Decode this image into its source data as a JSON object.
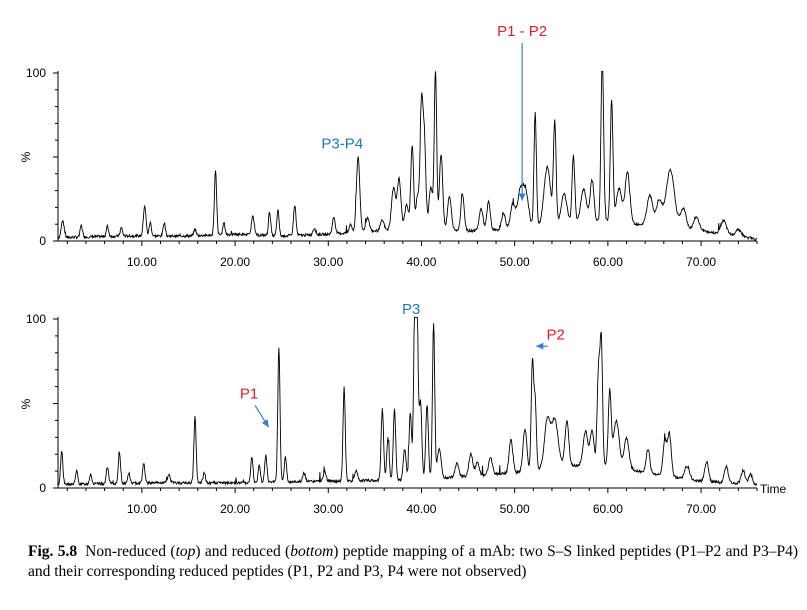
{
  "figure": {
    "caption_label": "Fig. 5.8",
    "caption_parts": [
      "Non-reduced (",
      "top",
      ") and reduced (",
      "bottom",
      ") peptide mapping of a mAb: two S–S linked peptides (P1–P2 and P3–P4) and their corresponding reduced peptides (P1, P2 and P3, P4 were not observed)"
    ]
  },
  "colors": {
    "trace": "#000000",
    "red_label": "#e31e24",
    "blue_label": "#1f78c1",
    "arrow": "#3a7fc4"
  },
  "chart_data": [
    {
      "type": "line",
      "panel": "top",
      "title": "",
      "xlabel": "",
      "ylabel": "%",
      "xlim": [
        1,
        76
      ],
      "ylim": [
        0,
        100
      ],
      "x_ticks": [
        "10.00",
        "20.00",
        "30.00",
        "40.00",
        "50.00",
        "60.00",
        "70.00"
      ],
      "x_tick_values": [
        10,
        20,
        30,
        40,
        50,
        60,
        70
      ],
      "y_ticks": [
        "0",
        "100"
      ],
      "y_tick_values": [
        0,
        100
      ],
      "baseline": [
        [
          1,
          2
        ],
        [
          8,
          3
        ],
        [
          15,
          3
        ],
        [
          20,
          4
        ],
        [
          25,
          3
        ],
        [
          30,
          4
        ],
        [
          35,
          6
        ],
        [
          40,
          7
        ],
        [
          45,
          6
        ],
        [
          50,
          7
        ],
        [
          55,
          10
        ],
        [
          60,
          12
        ],
        [
          65,
          9
        ],
        [
          70,
          6
        ],
        [
          74,
          3
        ],
        [
          76,
          1
        ]
      ],
      "peaks": [
        {
          "x": 1.5,
          "y": 10,
          "w": 0.15
        },
        {
          "x": 3.5,
          "y": 7,
          "w": 0.12
        },
        {
          "x": 6.3,
          "y": 6,
          "w": 0.12
        },
        {
          "x": 7.8,
          "y": 5,
          "w": 0.12
        },
        {
          "x": 10.3,
          "y": 18,
          "w": 0.14
        },
        {
          "x": 10.9,
          "y": 8,
          "w": 0.12
        },
        {
          "x": 12.4,
          "y": 8,
          "w": 0.12
        },
        {
          "x": 15.7,
          "y": 4,
          "w": 0.12
        },
        {
          "x": 17.9,
          "y": 38,
          "w": 0.12
        },
        {
          "x": 18.8,
          "y": 7,
          "w": 0.12
        },
        {
          "x": 21.9,
          "y": 12,
          "w": 0.14
        },
        {
          "x": 23.7,
          "y": 14,
          "w": 0.12
        },
        {
          "x": 24.6,
          "y": 15,
          "w": 0.12
        },
        {
          "x": 26.4,
          "y": 18,
          "w": 0.13
        },
        {
          "x": 28.5,
          "y": 4,
          "w": 0.15
        },
        {
          "x": 30.6,
          "y": 10,
          "w": 0.15
        },
        {
          "x": 32.4,
          "y": 5,
          "w": 0.15
        },
        {
          "x": 33.2,
          "y": 45,
          "w": 0.18
        },
        {
          "x": 34.2,
          "y": 8,
          "w": 0.2
        },
        {
          "x": 35.8,
          "y": 6,
          "w": 0.2
        },
        {
          "x": 37.0,
          "y": 25,
          "w": 0.22
        },
        {
          "x": 37.6,
          "y": 30,
          "w": 0.2
        },
        {
          "x": 38.4,
          "y": 15,
          "w": 0.2
        },
        {
          "x": 39.0,
          "y": 50,
          "w": 0.15
        },
        {
          "x": 39.6,
          "y": 20,
          "w": 0.2
        },
        {
          "x": 40.0,
          "y": 68,
          "w": 0.14
        },
        {
          "x": 40.3,
          "y": 55,
          "w": 0.16
        },
        {
          "x": 41.0,
          "y": 25,
          "w": 0.2
        },
        {
          "x": 41.5,
          "y": 95,
          "w": 0.13
        },
        {
          "x": 42.1,
          "y": 45,
          "w": 0.18
        },
        {
          "x": 43.0,
          "y": 20,
          "w": 0.2
        },
        {
          "x": 44.4,
          "y": 22,
          "w": 0.18
        },
        {
          "x": 46.4,
          "y": 13,
          "w": 0.2
        },
        {
          "x": 47.2,
          "y": 17,
          "w": 0.18
        },
        {
          "x": 48.8,
          "y": 10,
          "w": 0.2
        },
        {
          "x": 49.8,
          "y": 15,
          "w": 0.25
        },
        {
          "x": 50.6,
          "y": 22,
          "w": 0.3
        },
        {
          "x": 51.2,
          "y": 20,
          "w": 0.3
        },
        {
          "x": 52.2,
          "y": 68,
          "w": 0.13
        },
        {
          "x": 53.5,
          "y": 35,
          "w": 0.35
        },
        {
          "x": 54.3,
          "y": 60,
          "w": 0.14
        },
        {
          "x": 55.3,
          "y": 18,
          "w": 0.3
        },
        {
          "x": 56.3,
          "y": 40,
          "w": 0.15
        },
        {
          "x": 57.4,
          "y": 20,
          "w": 0.3
        },
        {
          "x": 58.3,
          "y": 25,
          "w": 0.2
        },
        {
          "x": 59.4,
          "y": 100,
          "w": 0.14
        },
        {
          "x": 60.4,
          "y": 72,
          "w": 0.14
        },
        {
          "x": 61.2,
          "y": 20,
          "w": 0.3
        },
        {
          "x": 62.1,
          "y": 30,
          "w": 0.25
        },
        {
          "x": 64.5,
          "y": 18,
          "w": 0.3
        },
        {
          "x": 65.5,
          "y": 15,
          "w": 0.3
        },
        {
          "x": 66.7,
          "y": 34,
          "w": 0.45
        },
        {
          "x": 68.1,
          "y": 12,
          "w": 0.3
        },
        {
          "x": 69.5,
          "y": 8,
          "w": 0.3
        },
        {
          "x": 72.4,
          "y": 8,
          "w": 0.3
        },
        {
          "x": 74.0,
          "y": 4,
          "w": 0.3
        }
      ],
      "annotations": [
        {
          "text": "P1 - P2",
          "color": "red",
          "x": 50.8,
          "y": 122,
          "arrow_to": [
            50.8,
            24
          ]
        },
        {
          "text": "P3-P4",
          "color": "blue",
          "x": 31.5,
          "y": 55,
          "arrow_to": null
        }
      ]
    },
    {
      "type": "line",
      "panel": "bottom",
      "title": "",
      "xlabel": "Time",
      "ylabel": "%",
      "xlim": [
        1,
        76
      ],
      "ylim": [
        0,
        100
      ],
      "x_ticks": [
        "10.00",
        "20.00",
        "30.00",
        "40.00",
        "50.00",
        "60.00",
        "70.00"
      ],
      "x_tick_values": [
        10,
        20,
        30,
        40,
        50,
        60,
        70
      ],
      "y_ticks": [
        "0",
        "100"
      ],
      "y_tick_values": [
        0,
        100
      ],
      "baseline": [
        [
          1,
          2
        ],
        [
          10,
          3
        ],
        [
          20,
          3
        ],
        [
          30,
          4
        ],
        [
          40,
          5
        ],
        [
          45,
          7
        ],
        [
          50,
          9
        ],
        [
          55,
          13
        ],
        [
          60,
          14
        ],
        [
          65,
          8
        ],
        [
          70,
          4
        ],
        [
          76,
          2
        ]
      ],
      "peaks": [
        {
          "x": 1.4,
          "y": 20,
          "w": 0.12
        },
        {
          "x": 3.0,
          "y": 8,
          "w": 0.12
        },
        {
          "x": 4.5,
          "y": 6,
          "w": 0.12
        },
        {
          "x": 6.3,
          "y": 10,
          "w": 0.12
        },
        {
          "x": 7.6,
          "y": 18,
          "w": 0.12
        },
        {
          "x": 8.6,
          "y": 6,
          "w": 0.12
        },
        {
          "x": 10.2,
          "y": 12,
          "w": 0.12
        },
        {
          "x": 12.9,
          "y": 5,
          "w": 0.15
        },
        {
          "x": 15.7,
          "y": 39,
          "w": 0.12
        },
        {
          "x": 16.7,
          "y": 6,
          "w": 0.12
        },
        {
          "x": 21.8,
          "y": 15,
          "w": 0.12
        },
        {
          "x": 22.6,
          "y": 10,
          "w": 0.12
        },
        {
          "x": 23.3,
          "y": 16,
          "w": 0.12
        },
        {
          "x": 24.7,
          "y": 79,
          "w": 0.12
        },
        {
          "x": 25.4,
          "y": 15,
          "w": 0.12
        },
        {
          "x": 27.4,
          "y": 5,
          "w": 0.15
        },
        {
          "x": 29.6,
          "y": 6,
          "w": 0.15
        },
        {
          "x": 31.7,
          "y": 55,
          "w": 0.12
        },
        {
          "x": 33.0,
          "y": 6,
          "w": 0.15
        },
        {
          "x": 35.8,
          "y": 42,
          "w": 0.13
        },
        {
          "x": 36.4,
          "y": 25,
          "w": 0.13
        },
        {
          "x": 37.1,
          "y": 42,
          "w": 0.13
        },
        {
          "x": 38.2,
          "y": 18,
          "w": 0.15
        },
        {
          "x": 38.8,
          "y": 40,
          "w": 0.13
        },
        {
          "x": 39.3,
          "y": 99,
          "w": 0.14
        },
        {
          "x": 39.5,
          "y": 93,
          "w": 0.14
        },
        {
          "x": 39.9,
          "y": 45,
          "w": 0.14
        },
        {
          "x": 40.6,
          "y": 44,
          "w": 0.14
        },
        {
          "x": 41.3,
          "y": 92,
          "w": 0.12
        },
        {
          "x": 41.9,
          "y": 18,
          "w": 0.2
        },
        {
          "x": 43.8,
          "y": 8,
          "w": 0.2
        },
        {
          "x": 45.3,
          "y": 13,
          "w": 0.2
        },
        {
          "x": 46.0,
          "y": 8,
          "w": 0.2
        },
        {
          "x": 47.4,
          "y": 10,
          "w": 0.2
        },
        {
          "x": 49.6,
          "y": 20,
          "w": 0.2
        },
        {
          "x": 51.1,
          "y": 25,
          "w": 0.2
        },
        {
          "x": 51.9,
          "y": 63,
          "w": 0.13
        },
        {
          "x": 52.2,
          "y": 40,
          "w": 0.13
        },
        {
          "x": 53.5,
          "y": 28,
          "w": 0.3
        },
        {
          "x": 54.3,
          "y": 28,
          "w": 0.35
        },
        {
          "x": 55.6,
          "y": 27,
          "w": 0.2
        },
        {
          "x": 57.6,
          "y": 20,
          "w": 0.25
        },
        {
          "x": 58.3,
          "y": 20,
          "w": 0.2
        },
        {
          "x": 59.0,
          "y": 56,
          "w": 0.15
        },
        {
          "x": 59.3,
          "y": 70,
          "w": 0.13
        },
        {
          "x": 60.2,
          "y": 43,
          "w": 0.15
        },
        {
          "x": 60.9,
          "y": 27,
          "w": 0.3
        },
        {
          "x": 62.0,
          "y": 18,
          "w": 0.25
        },
        {
          "x": 64.3,
          "y": 14,
          "w": 0.2
        },
        {
          "x": 66.1,
          "y": 20,
          "w": 0.2
        },
        {
          "x": 66.6,
          "y": 25,
          "w": 0.2
        },
        {
          "x": 68.5,
          "y": 8,
          "w": 0.25
        },
        {
          "x": 70.6,
          "y": 12,
          "w": 0.2
        },
        {
          "x": 72.7,
          "y": 10,
          "w": 0.2
        },
        {
          "x": 74.5,
          "y": 8,
          "w": 0.2
        },
        {
          "x": 75.3,
          "y": 6,
          "w": 0.2
        }
      ],
      "annotations": [
        {
          "text": "P1",
          "color": "red",
          "x": 21.5,
          "y": 53,
          "arrow_to": [
            23.6,
            36
          ]
        },
        {
          "text": "P3",
          "color": "blue",
          "x": 38.9,
          "y": 103,
          "arrow_to": null
        },
        {
          "text": "P2",
          "color": "red",
          "x": 54.4,
          "y": 88,
          "arrow_to": [
            52.3,
            84
          ]
        }
      ]
    }
  ]
}
